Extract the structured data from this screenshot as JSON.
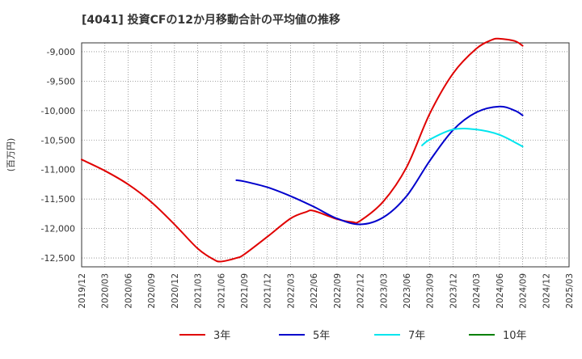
{
  "chart_data": {
    "type": "line",
    "title": "[4041]  投資CFの12か月移動合計の平均値の推移",
    "ylabel": "(百万円)",
    "xlabel": "",
    "ylim": [
      -12650,
      -8850
    ],
    "yticks": [
      -9000,
      -9500,
      -10000,
      -10500,
      -11000,
      -11500,
      -12000,
      -12500
    ],
    "ytick_labels": [
      "-9,000",
      "-9,500",
      "-10,000",
      "-10,500",
      "-11,000",
      "-11,500",
      "-12,000",
      "-12,500"
    ],
    "xticks": [
      "2019/12",
      "2020/03",
      "2020/06",
      "2020/09",
      "2020/12",
      "2021/03",
      "2021/06",
      "2021/09",
      "2021/12",
      "2022/03",
      "2022/06",
      "2022/09",
      "2022/12",
      "2023/03",
      "2023/06",
      "2023/09",
      "2023/12",
      "2024/03",
      "2024/06",
      "2024/09",
      "2024/12",
      "2025/03"
    ],
    "grid": true,
    "legend_position": "bottom",
    "series": [
      {
        "name": "3年",
        "color": "#e00000",
        "x": [
          "2019/12",
          "2020/03",
          "2020/06",
          "2020/09",
          "2020/12",
          "2021/03",
          "2021/05",
          "2021/06",
          "2021/08",
          "2021/09",
          "2021/12",
          "2022/03",
          "2022/05",
          "2022/06",
          "2022/09",
          "2022/11",
          "2022/12",
          "2023/03",
          "2023/06",
          "2023/09",
          "2023/12",
          "2024/03",
          "2024/05",
          "2024/06",
          "2024/08",
          "2024/09"
        ],
        "y": [
          -10830,
          -11020,
          -11250,
          -11550,
          -11930,
          -12340,
          -12520,
          -12560,
          -12500,
          -12440,
          -12140,
          -11830,
          -11720,
          -11700,
          -11840,
          -11890,
          -11870,
          -11540,
          -10960,
          -10050,
          -9370,
          -8950,
          -8800,
          -8780,
          -8820,
          -8900
        ]
      },
      {
        "name": "5年",
        "color": "#0000cc",
        "x": [
          "2021/08",
          "2021/09",
          "2021/12",
          "2022/03",
          "2022/06",
          "2022/09",
          "2022/12",
          "2023/03",
          "2023/06",
          "2023/09",
          "2023/12",
          "2024/03",
          "2024/06",
          "2024/08",
          "2024/09"
        ],
        "y": [
          -11180,
          -11200,
          -11300,
          -11450,
          -11630,
          -11830,
          -11930,
          -11810,
          -11450,
          -10850,
          -10330,
          -10030,
          -9930,
          -10000,
          -10080
        ]
      },
      {
        "name": "7年",
        "color": "#00e5ee",
        "x": [
          "2023/08",
          "2023/09",
          "2023/12",
          "2024/03",
          "2024/06",
          "2024/09"
        ],
        "y": [
          -10590,
          -10490,
          -10320,
          -10320,
          -10410,
          -10610
        ]
      },
      {
        "name": "10年",
        "color": "#008000",
        "x": [],
        "y": []
      }
    ]
  }
}
